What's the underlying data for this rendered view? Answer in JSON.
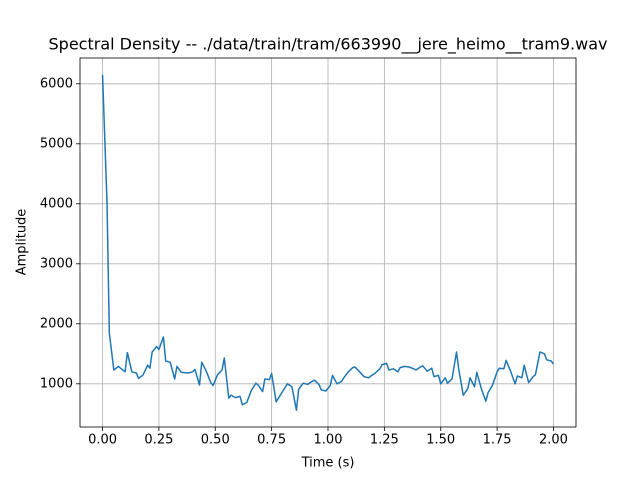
{
  "chart_data": {
    "type": "line",
    "title": "Spectral Density -- ./data/train/tram/663990__jere_heimo__tram9.wav",
    "x_label": "Time (s)",
    "y_label": "Amplitude",
    "x": [
      0,
      0.02,
      0.03,
      0.05,
      0.07,
      0.1,
      0.11,
      0.13,
      0.15,
      0.16,
      0.18,
      0.2,
      0.21,
      0.22,
      0.24,
      0.25,
      0.27,
      0.28,
      0.3,
      0.32,
      0.33,
      0.35,
      0.38,
      0.4,
      0.41,
      0.43,
      0.44,
      0.46,
      0.48,
      0.49,
      0.51,
      0.53,
      0.54,
      0.56,
      0.57,
      0.59,
      0.61,
      0.62,
      0.64,
      0.66,
      0.68,
      0.69,
      0.71,
      0.72,
      0.74,
      0.75,
      0.77,
      0.79,
      0.81,
      0.82,
      0.84,
      0.86,
      0.87,
      0.89,
      0.91,
      0.92,
      0.94,
      0.96,
      0.97,
      0.99,
      1.01,
      1.02,
      1.04,
      1.06,
      1.07,
      1.09,
      1.11,
      1.12,
      1.14,
      1.16,
      1.18,
      1.19,
      1.21,
      1.23,
      1.24,
      1.26,
      1.27,
      1.29,
      1.31,
      1.32,
      1.34,
      1.36,
      1.38,
      1.39,
      1.41,
      1.42,
      1.44,
      1.46,
      1.47,
      1.49,
      1.5,
      1.52,
      1.53,
      1.55,
      1.57,
      1.58,
      1.6,
      1.62,
      1.63,
      1.65,
      1.66,
      1.68,
      1.7,
      1.71,
      1.73,
      1.75,
      1.76,
      1.78,
      1.79,
      1.81,
      1.83,
      1.84,
      1.86,
      1.87,
      1.89,
      1.91,
      1.92,
      1.94,
      1.96,
      1.97,
      1.99,
      2.0
    ],
    "values": [
      6150,
      4000,
      1850,
      1230,
      1290,
      1200,
      1520,
      1200,
      1180,
      1090,
      1150,
      1310,
      1260,
      1530,
      1620,
      1570,
      1780,
      1380,
      1360,
      1080,
      1290,
      1190,
      1180,
      1200,
      1240,
      980,
      1360,
      1210,
      1020,
      970,
      1150,
      1230,
      1430,
      760,
      810,
      770,
      790,
      650,
      690,
      890,
      1010,
      980,
      870,
      1080,
      1070,
      1170,
      700,
      820,
      940,
      1000,
      950,
      560,
      910,
      1010,
      990,
      1020,
      1060,
      990,
      900,
      880,
      970,
      1140,
      1000,
      1040,
      1100,
      1200,
      1270,
      1280,
      1200,
      1120,
      1100,
      1130,
      1180,
      1250,
      1320,
      1340,
      1230,
      1250,
      1200,
      1270,
      1290,
      1280,
      1250,
      1230,
      1280,
      1300,
      1210,
      1260,
      1120,
      1140,
      1000,
      1100,
      1010,
      1080,
      1530,
      1240,
      810,
      920,
      1100,
      950,
      1190,
      920,
      710,
      850,
      980,
      1200,
      1260,
      1250,
      1390,
      1210,
      1000,
      1130,
      1100,
      1310,
      1020,
      1120,
      1150,
      1530,
      1500,
      1400,
      1380,
      1330
    ],
    "color": "#1f77b4",
    "xlim": [
      -0.1,
      2.1
    ],
    "ylim": [
      280,
      6430
    ],
    "xticks": [
      {
        "value": 0,
        "label": "0.00"
      },
      {
        "value": 0.25,
        "label": "0.25"
      },
      {
        "value": 0.5,
        "label": "0.50"
      },
      {
        "value": 0.75,
        "label": "0.75"
      },
      {
        "value": 1,
        "label": "1.00"
      },
      {
        "value": 1.25,
        "label": "1.25"
      },
      {
        "value": 1.5,
        "label": "1.50"
      },
      {
        "value": 1.75,
        "label": "1.75"
      },
      {
        "value": 2,
        "label": "2.00"
      }
    ],
    "yticks": [
      1000,
      2000,
      3000,
      4000,
      5000,
      6000
    ],
    "grid": true
  }
}
